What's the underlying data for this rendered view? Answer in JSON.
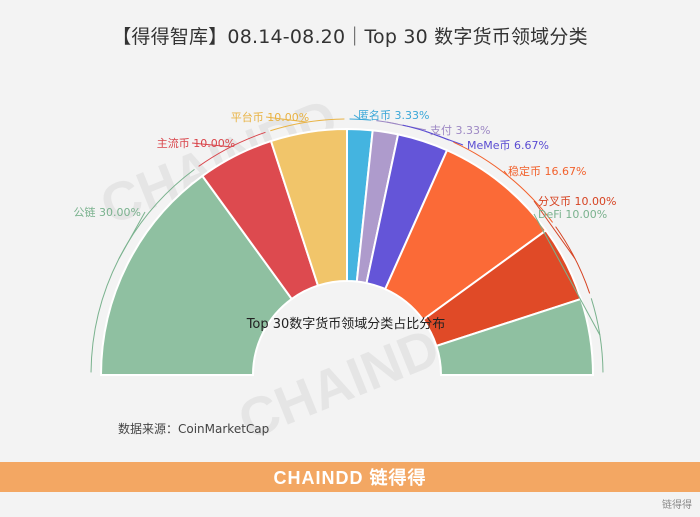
{
  "title": "【得得智库】08.14-08.20｜Top 30 数字货币领域分类",
  "source": "数据来源：CoinMarketCap",
  "footer": {
    "brand": "CHAINDD 链得得",
    "bg_color": "#f3a763"
  },
  "watermark": "CHAINDD",
  "corner_logo": "链得得",
  "chart_data": {
    "type": "pie",
    "title": "Top 30数字货币领域分类占比分布",
    "half_donut": true,
    "slices": [
      {
        "label": "公链",
        "value": 30.0,
        "display": "公链 30.00%",
        "color": "#8fc0a1",
        "label_color": "#7ab28e"
      },
      {
        "label": "主流币",
        "value": 10.0,
        "display": "主流币 10.00%",
        "color": "#dd4a4f",
        "label_color": "#d9444a"
      },
      {
        "label": "平台币",
        "value": 10.0,
        "display": "平台币 10.00%",
        "color": "#f1c56a",
        "label_color": "#e9b344"
      },
      {
        "label": "匿名币",
        "value": 3.33,
        "display": "匿名币 3.33%",
        "color": "#44b4e0",
        "label_color": "#3aa7d8"
      },
      {
        "label": "支付",
        "value": 3.33,
        "display": "支付 3.33%",
        "color": "#ae9bcc",
        "label_color": "#9d88c4"
      },
      {
        "label": "MeMe币",
        "value": 6.67,
        "display": "MeMe币 6.67%",
        "color": "#6455d8",
        "label_color": "#5a4cd2"
      },
      {
        "label": "稳定币",
        "value": 16.67,
        "display": "稳定币 16.67%",
        "color": "#fb6a37",
        "label_color": "#f2612c"
      },
      {
        "label": "分叉币",
        "value": 10.0,
        "display": "分叉币 10.00%",
        "color": "#e04a27",
        "label_color": "#d64322"
      },
      {
        "label": "DeFi",
        "value": 10.0,
        "display": "DeFi 10.00%",
        "color": "#8fc0a1",
        "label_color": "#7ab28e"
      }
    ]
  }
}
